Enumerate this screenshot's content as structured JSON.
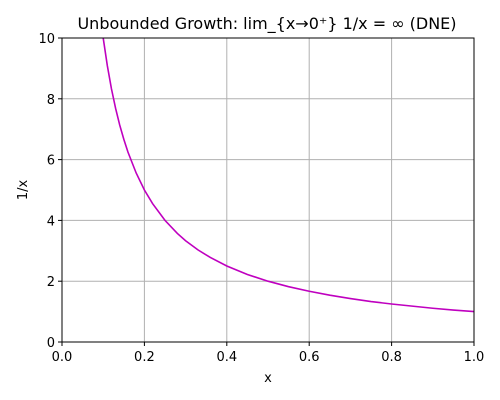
{
  "chart_data": {
    "type": "line",
    "title": "Unbounded Growth:  lim_{x→0⁺} 1/x = ∞ (DNE)",
    "xlabel": "x",
    "ylabel": "1/x",
    "xlim": [
      0.0,
      1.0
    ],
    "ylim": [
      0,
      10
    ],
    "x_ticks": [
      "0.0",
      "0.2",
      "0.4",
      "0.6",
      "0.8",
      "1.0"
    ],
    "y_ticks": [
      "0",
      "2",
      "4",
      "6",
      "8",
      "10"
    ],
    "grid": true,
    "series": [
      {
        "color": "#bf00bf",
        "x": [
          0.1,
          0.11,
          0.12,
          0.13,
          0.14,
          0.15,
          0.16,
          0.18,
          0.2,
          0.22,
          0.25,
          0.28,
          0.3,
          0.33,
          0.36,
          0.4,
          0.45,
          0.5,
          0.55,
          0.6,
          0.65,
          0.7,
          0.75,
          0.8,
          0.85,
          0.9,
          0.95,
          1.0
        ],
        "y": [
          10.0,
          9.09,
          8.33,
          7.69,
          7.14,
          6.67,
          6.25,
          5.56,
          5.0,
          4.55,
          4.0,
          3.57,
          3.33,
          3.03,
          2.78,
          2.5,
          2.22,
          2.0,
          1.82,
          1.67,
          1.54,
          1.43,
          1.33,
          1.25,
          1.18,
          1.11,
          1.05,
          1.0
        ]
      }
    ]
  }
}
